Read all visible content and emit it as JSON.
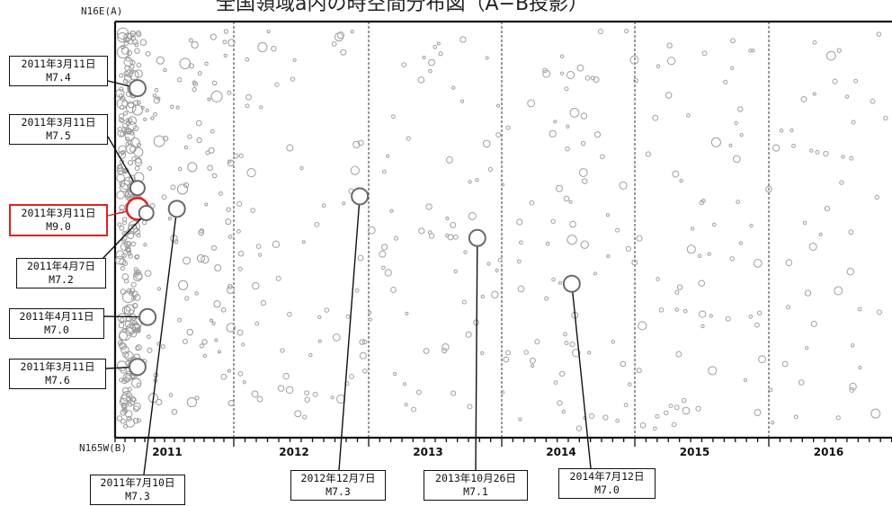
{
  "title": "全国領域a内の時空間分布図（A−B投影）",
  "axis": {
    "top_label": "N16E(A)",
    "bottom_label": "N165W(B)"
  },
  "chart_data": {
    "type": "scatter",
    "xlim": [
      "2011-01-01",
      "2016-12-31"
    ],
    "ylabel_top": "N16E(A)",
    "ylabel_bottom": "N165W(B)",
    "x_ticks": [
      "2011",
      "2012",
      "2013",
      "2014",
      "2015",
      "2016"
    ],
    "grid": "dashed vertical lines at year boundaries",
    "events": [
      {
        "date": "2011年3月11日",
        "mag": "M7.4"
      },
      {
        "date": "2011年3月11日",
        "mag": "M7.5"
      },
      {
        "date": "2011年3月11日",
        "mag": "M9.0",
        "highlight": "#e02020"
      },
      {
        "date": "2011年4月7日",
        "mag": "M7.2"
      },
      {
        "date": "2011年4月11日",
        "mag": "M7.0"
      },
      {
        "date": "2011年3月11日",
        "mag": "M7.6"
      },
      {
        "date": "2011年7月10日",
        "mag": "M7.3"
      },
      {
        "date": "2012年12月7日",
        "mag": "M7.3"
      },
      {
        "date": "2013年10月26日",
        "mag": "M7.1"
      },
      {
        "date": "2014年7月12日",
        "mag": "M7.0"
      }
    ]
  }
}
